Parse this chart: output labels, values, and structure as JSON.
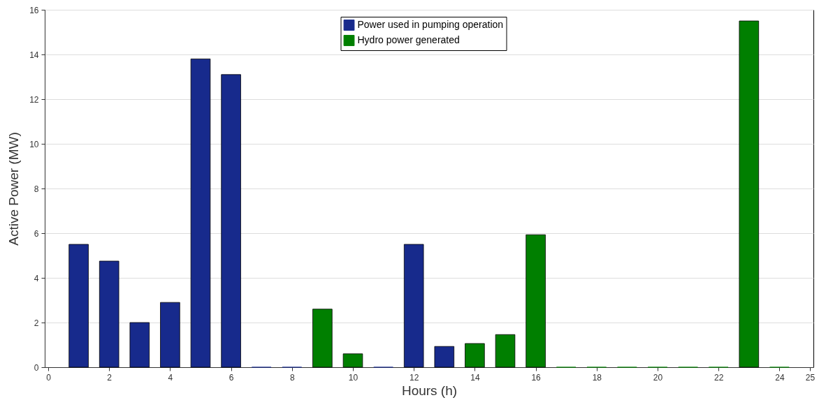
{
  "chart_data": {
    "type": "bar",
    "xlabel": "Hours (h)",
    "ylabel": "Active Power (MW)",
    "x": [
      1,
      2,
      3,
      4,
      5,
      6,
      7,
      8,
      9,
      10,
      11,
      12,
      13,
      14,
      15,
      16,
      17,
      18,
      19,
      20,
      21,
      22,
      23,
      24
    ],
    "series": [
      {
        "name": "Power used in pumping operation",
        "color": "#172a8c",
        "values": [
          5.5,
          4.75,
          2.0,
          2.9,
          13.8,
          13.1,
          0,
          0,
          null,
          null,
          0,
          5.5,
          0.93,
          null,
          null,
          null,
          null,
          null,
          null,
          null,
          null,
          null,
          null,
          null
        ]
      },
      {
        "name": "Hydro power generated",
        "color": "#007f00",
        "values": [
          null,
          null,
          null,
          null,
          null,
          null,
          null,
          null,
          2.6,
          0.6,
          null,
          null,
          null,
          1.06,
          1.46,
          5.93,
          0,
          0,
          0,
          0,
          0,
          0,
          15.5,
          0
        ]
      }
    ],
    "xlim": [
      0,
      25
    ],
    "xticks": [
      0,
      2,
      4,
      6,
      8,
      10,
      12,
      14,
      16,
      18,
      20,
      22,
      24,
      25
    ],
    "ylim": [
      0,
      16
    ],
    "yticks": [
      0,
      2,
      4,
      6,
      8,
      10,
      12,
      14,
      16
    ],
    "grid": "y",
    "legend": "top"
  }
}
